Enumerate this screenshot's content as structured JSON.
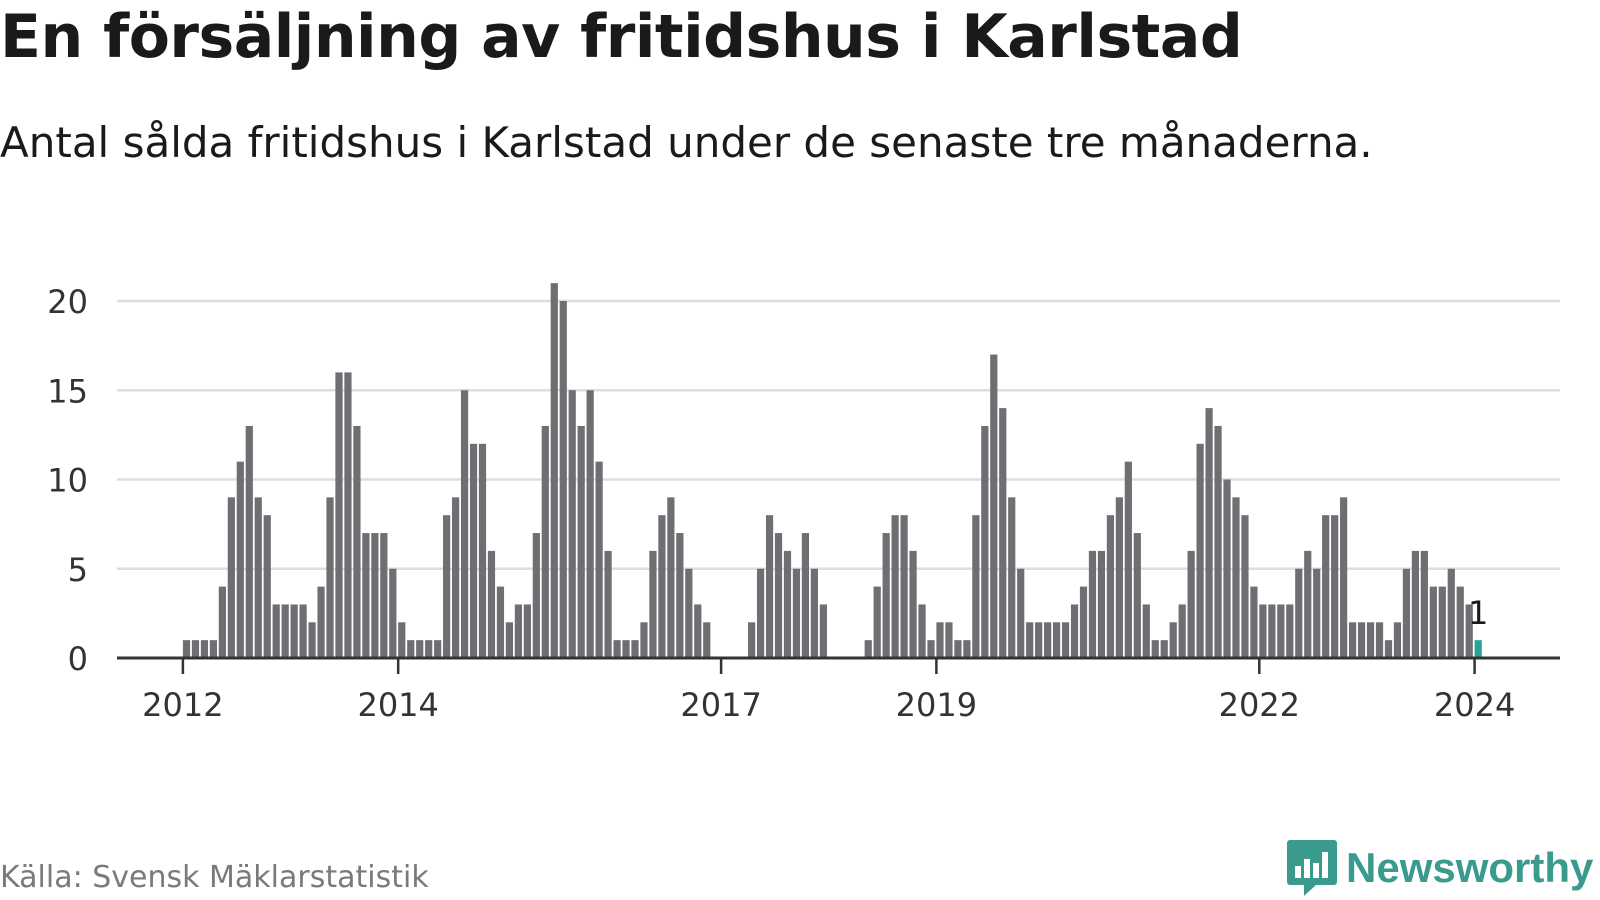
{
  "title": "En försäljning av fritidshus i Karlstad",
  "subtitle": "Antal sålda fritidshus i Karlstad under de senaste tre månaderna.",
  "source": "Källa: Svensk Mäklarstatistik",
  "logo": {
    "text": "Newsworthy",
    "icon": "newsworthy-logo-icon"
  },
  "colors": {
    "bar": "#6e6e73",
    "highlight": "#2aa198",
    "grid": "#dedede",
    "axis": "#333333"
  },
  "chart_data": {
    "type": "bar",
    "title": "En försäljning av fritidshus i Karlstad",
    "xlabel": "",
    "ylabel": "",
    "ylim": [
      0,
      21
    ],
    "yticks": [
      0,
      5,
      10,
      15,
      20
    ],
    "x_axis_type": "monthly",
    "xticks": [
      {
        "label": "2012",
        "index": 0
      },
      {
        "label": "2014",
        "index": 24
      },
      {
        "label": "2017",
        "index": 60
      },
      {
        "label": "2019",
        "index": 84
      },
      {
        "label": "2022",
        "index": 120
      },
      {
        "label": "2024",
        "index": 144
      }
    ],
    "grid": true,
    "highlight_label": "1",
    "series": [
      {
        "values": [
          1,
          1,
          1,
          1,
          4,
          9,
          11,
          13,
          9,
          8,
          3,
          3,
          3,
          3,
          2,
          4,
          9,
          16,
          16,
          13,
          7,
          7,
          7,
          5,
          2,
          1,
          1,
          1,
          1,
          8,
          9,
          15,
          12,
          12,
          6,
          4,
          2,
          3,
          3,
          7,
          13,
          21,
          20,
          15,
          13,
          15,
          11,
          6,
          1,
          1,
          1,
          2,
          6,
          8,
          9,
          7,
          5,
          3,
          2,
          0,
          0,
          0,
          0,
          2,
          5,
          8,
          7,
          6,
          5,
          7,
          5,
          3,
          0,
          0,
          0,
          0,
          1,
          4,
          7,
          8,
          8,
          6,
          3,
          1,
          2,
          2,
          1,
          1,
          8,
          13,
          17,
          14,
          9,
          5,
          2,
          2,
          2,
          2,
          2,
          3,
          4,
          6,
          6,
          8,
          9,
          11,
          7,
          3,
          1,
          1,
          2,
          3,
          6,
          12,
          14,
          13,
          10,
          9,
          8,
          4,
          3,
          3,
          3,
          3,
          5,
          6,
          5,
          8,
          8,
          9,
          2,
          2,
          2,
          2,
          1,
          2,
          5,
          6,
          6,
          4,
          4,
          5,
          4,
          3,
          1
        ],
        "highlight_last": true
      }
    ]
  }
}
